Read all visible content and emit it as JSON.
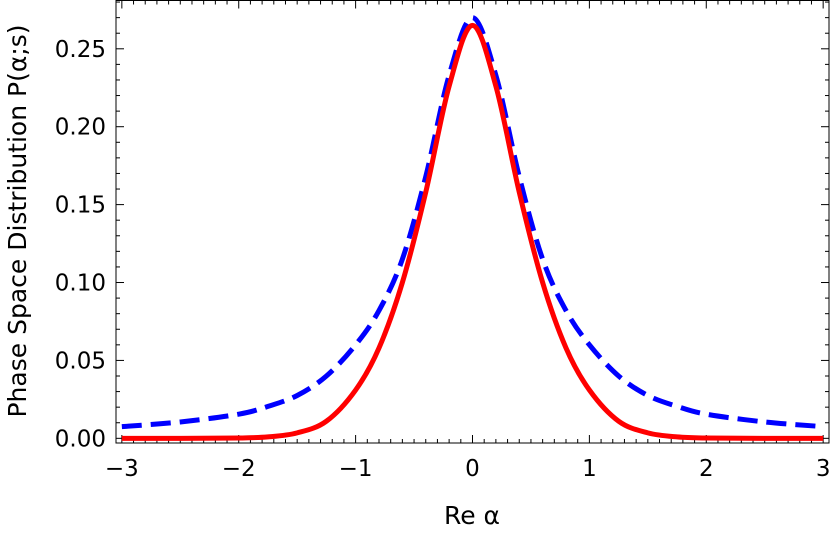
{
  "chart_data": {
    "type": "line",
    "title": "",
    "xlabel": "Re α",
    "ylabel": "Phase Space Distribution P(α;s)",
    "xlim": [
      -3.05,
      3.05
    ],
    "ylim": [
      -0.003,
      0.281
    ],
    "x_ticks": [
      -3,
      -2,
      -1,
      0,
      1,
      2,
      3
    ],
    "x_tick_labels": [
      "−3",
      "−2",
      "−1",
      "0",
      "1",
      "2",
      "3"
    ],
    "y_ticks": [
      0.0,
      0.05,
      0.1,
      0.15,
      0.2,
      0.25
    ],
    "y_tick_labels": [
      "0.00",
      "0.05",
      "0.10",
      "0.15",
      "0.20",
      "0.25"
    ],
    "grid": false,
    "legend": "none",
    "series": [
      {
        "style": "solid",
        "color": "#ff0000",
        "x": [
          -3.0,
          -2.5,
          -2.0,
          -1.75,
          -1.5,
          -1.25,
          -1.0,
          -0.8,
          -0.6,
          -0.4,
          -0.2,
          0.0,
          0.2,
          0.4,
          0.6,
          0.8,
          1.0,
          1.25,
          1.5,
          1.75,
          2.0,
          2.5,
          3.0
        ],
        "y": [
          0.0,
          0.0,
          0.0002,
          0.0009,
          0.0035,
          0.011,
          0.031,
          0.058,
          0.1,
          0.158,
          0.226,
          0.265,
          0.226,
          0.158,
          0.1,
          0.058,
          0.031,
          0.011,
          0.0035,
          0.0009,
          0.0002,
          0.0,
          0.0
        ]
      },
      {
        "style": "dashed",
        "color": "#0000ff",
        "x": [
          -3.0,
          -2.5,
          -2.0,
          -1.75,
          -1.5,
          -1.25,
          -1.0,
          -0.8,
          -0.6,
          -0.4,
          -0.2,
          0.0,
          0.2,
          0.4,
          0.6,
          0.8,
          1.0,
          1.25,
          1.5,
          1.75,
          2.0,
          2.5,
          3.0
        ],
        "y": [
          0.0075,
          0.0105,
          0.0155,
          0.0205,
          0.0275,
          0.04,
          0.06,
          0.082,
          0.115,
          0.168,
          0.233,
          0.27,
          0.233,
          0.168,
          0.115,
          0.082,
          0.06,
          0.04,
          0.0275,
          0.0205,
          0.0155,
          0.0105,
          0.0075
        ]
      }
    ]
  }
}
